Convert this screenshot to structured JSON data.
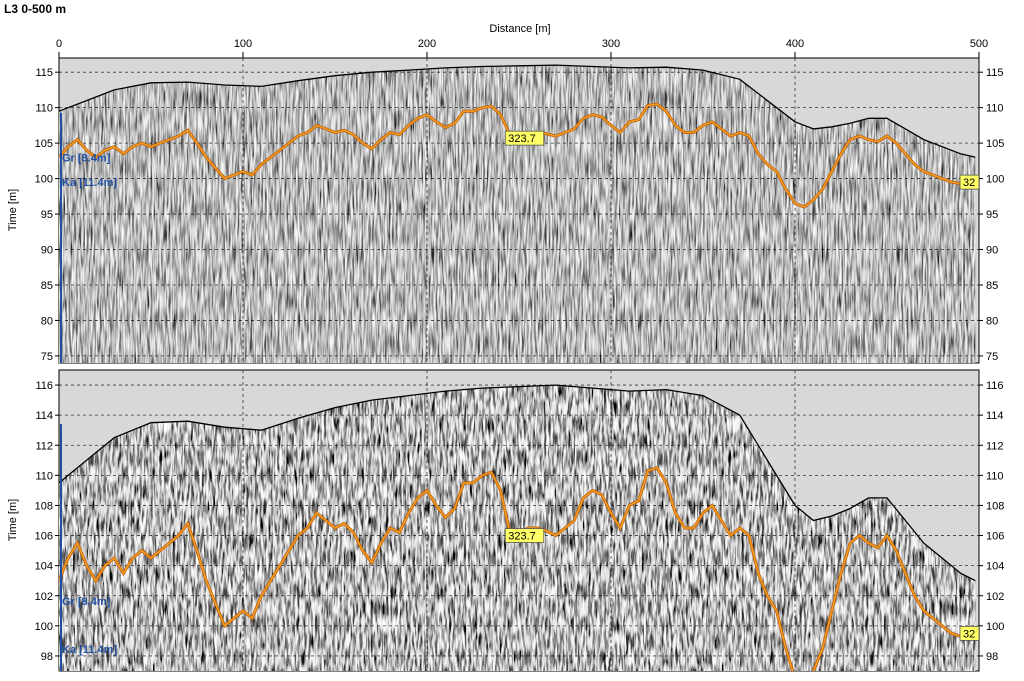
{
  "page_title": "L3 0-500 m",
  "chart_data": [
    {
      "type": "line",
      "panel": "top",
      "title": "L3 0-500 m",
      "xlabel": "Distance [m]",
      "ylabel": "Time [m]",
      "xlim": [
        0,
        500
      ],
      "ylim": [
        74,
        117
      ],
      "x_ticks": [
        0,
        100,
        200,
        300,
        400,
        500
      ],
      "x_tick_labels": [
        "0",
        "100",
        "200",
        "300",
        "400",
        "500"
      ],
      "y_ticks": [
        75,
        80,
        85,
        90,
        95,
        100,
        105,
        110,
        115
      ],
      "y_tick_labels": [
        "75",
        "80",
        "85",
        "90",
        "95",
        "100",
        "105",
        "110",
        "115"
      ],
      "grid": true,
      "series": [
        {
          "role": "surface",
          "color": "#000000",
          "x": [
            0,
            15,
            30,
            50,
            70,
            90,
            110,
            130,
            150,
            170,
            190,
            210,
            230,
            250,
            270,
            290,
            310,
            330,
            350,
            370,
            380,
            390,
            400,
            410,
            420,
            430,
            440,
            450,
            460,
            470,
            480,
            490,
            498
          ],
          "y": [
            109.5,
            111,
            112.5,
            113.5,
            113.6,
            113.2,
            113,
            113.8,
            114.5,
            115,
            115.3,
            115.6,
            115.8,
            115.9,
            116,
            115.8,
            115.6,
            115.7,
            115.3,
            114,
            112,
            110,
            108,
            107,
            107.3,
            107.8,
            108.5,
            108.5,
            107,
            105.5,
            104.5,
            103.5,
            103
          ]
        },
        {
          "role": "picked-horizon",
          "color": "#f59a23",
          "x": [
            0,
            5,
            10,
            15,
            20,
            25,
            30,
            35,
            40,
            45,
            50,
            55,
            60,
            65,
            70,
            75,
            80,
            85,
            90,
            95,
            100,
            105,
            110,
            115,
            120,
            125,
            130,
            135,
            140,
            145,
            150,
            155,
            160,
            165,
            170,
            175,
            180,
            185,
            190,
            195,
            200,
            205,
            210,
            215,
            220,
            225,
            230,
            235,
            240,
            245,
            250,
            255,
            260,
            265,
            270,
            275,
            280,
            285,
            290,
            295,
            300,
            305,
            310,
            315,
            320,
            325,
            330,
            335,
            340,
            345,
            350,
            355,
            360,
            365,
            370,
            375,
            380,
            385,
            390,
            395,
            400,
            405,
            410,
            415,
            420,
            425,
            430,
            435,
            440,
            445,
            450,
            455,
            460,
            465,
            470,
            475,
            480,
            485,
            490,
            495,
            498
          ],
          "y": [
            103,
            104.5,
            105.5,
            104,
            103,
            104,
            104.5,
            103.5,
            104.5,
            105,
            104.5,
            105,
            105.5,
            106,
            106.8,
            105,
            103,
            101.5,
            100,
            100.5,
            101,
            100.5,
            102,
            103,
            104,
            105,
            106,
            106.5,
            107.5,
            107,
            106.5,
            106.8,
            106.2,
            105,
            104.2,
            105.5,
            106.5,
            106.2,
            107.5,
            108.5,
            109,
            108,
            107.2,
            107.8,
            109.5,
            109.5,
            110,
            110.2,
            109,
            106.2,
            106.2,
            106.5,
            106.5,
            106.3,
            106,
            106.5,
            107,
            108.5,
            109,
            108.7,
            107.5,
            106.5,
            108,
            108.3,
            110.3,
            110.5,
            109.5,
            107.5,
            106.5,
            106.5,
            107.5,
            108,
            107,
            106,
            106.5,
            106,
            103.5,
            102,
            101,
            98.5,
            96.5,
            96,
            97,
            98.5,
            101,
            103.5,
            105.5,
            106,
            105.5,
            105.2,
            106,
            105,
            103.5,
            102,
            101,
            100.5,
            100,
            99.5,
            99.3,
            99.5,
            99.5
          ]
        }
      ],
      "labels": [
        {
          "text": "323.7",
          "x": 253,
          "y": 105.7
        },
        {
          "text": "32",
          "x": 498,
          "y": 99.5
        }
      ],
      "side_labels": [
        "Gr [8.4m]",
        "Ka [11.4m]"
      ]
    },
    {
      "type": "line",
      "panel": "bottom",
      "xlabel": "",
      "ylabel": "Time [m]",
      "xlim": [
        0,
        500
      ],
      "ylim": [
        97,
        117
      ],
      "y_ticks": [
        98,
        100,
        102,
        104,
        106,
        108,
        110,
        112,
        114,
        116
      ],
      "y_tick_labels": [
        "98",
        "100",
        "102",
        "104",
        "106",
        "108",
        "110",
        "112",
        "114",
        "116"
      ],
      "grid": true,
      "series": [
        {
          "role": "surface",
          "color": "#000000",
          "x": [
            0,
            15,
            30,
            50,
            70,
            90,
            110,
            130,
            150,
            170,
            190,
            210,
            230,
            250,
            270,
            290,
            310,
            330,
            350,
            370,
            380,
            390,
            400,
            410,
            420,
            430,
            440,
            450,
            460,
            470,
            480,
            490,
            498
          ],
          "y": [
            109.5,
            111,
            112.5,
            113.5,
            113.6,
            113.2,
            113,
            113.8,
            114.5,
            115,
            115.3,
            115.6,
            115.8,
            115.9,
            116,
            115.8,
            115.6,
            115.7,
            115.3,
            114,
            112,
            110,
            108,
            107,
            107.3,
            107.8,
            108.5,
            108.5,
            107,
            105.5,
            104.5,
            103.5,
            103
          ]
        },
        {
          "role": "picked-horizon",
          "color": "#f59a23",
          "x": [
            0,
            5,
            10,
            15,
            20,
            25,
            30,
            35,
            40,
            45,
            50,
            55,
            60,
            65,
            70,
            75,
            80,
            85,
            90,
            95,
            100,
            105,
            110,
            115,
            120,
            125,
            130,
            135,
            140,
            145,
            150,
            155,
            160,
            165,
            170,
            175,
            180,
            185,
            190,
            195,
            200,
            205,
            210,
            215,
            220,
            225,
            230,
            235,
            240,
            245,
            250,
            255,
            260,
            265,
            270,
            275,
            280,
            285,
            290,
            295,
            300,
            305,
            310,
            315,
            320,
            325,
            330,
            335,
            340,
            345,
            350,
            355,
            360,
            365,
            370,
            375,
            380,
            385,
            390,
            395,
            400,
            405,
            410,
            415,
            420,
            425,
            430,
            435,
            440,
            445,
            450,
            455,
            460,
            465,
            470,
            475,
            480,
            485,
            490,
            495,
            498
          ],
          "y": [
            103,
            104.5,
            105.5,
            104,
            103,
            104,
            104.5,
            103.5,
            104.5,
            105,
            104.5,
            105,
            105.5,
            106,
            106.8,
            105,
            103,
            101.5,
            100,
            100.5,
            101,
            100.5,
            102,
            103,
            104,
            105,
            106,
            106.5,
            107.5,
            107,
            106.5,
            106.8,
            106.2,
            105,
            104.2,
            105.5,
            106.5,
            106.2,
            107.5,
            108.5,
            109,
            108,
            107.2,
            107.8,
            109.5,
            109.5,
            110,
            110.2,
            109,
            106.2,
            106.2,
            106.5,
            106.5,
            106.3,
            106,
            106.5,
            107,
            108.5,
            109,
            108.7,
            107.5,
            106.5,
            108,
            108.3,
            110.3,
            110.5,
            109.5,
            107.5,
            106.5,
            106.5,
            107.5,
            108,
            107,
            106,
            106.5,
            106,
            103.5,
            102,
            101,
            98.5,
            96.5,
            96,
            97,
            98.5,
            101,
            103.5,
            105.5,
            106,
            105.5,
            105.2,
            106,
            105,
            103.5,
            102,
            101,
            100.5,
            100,
            99.5,
            99.3,
            99.5,
            99.5
          ]
        }
      ],
      "labels": [
        {
          "text": "323.7",
          "x": 253,
          "y": 106
        },
        {
          "text": "32",
          "x": 498,
          "y": 99.5
        }
      ],
      "side_labels": [
        "Gr [8.4m]",
        "Ka [11.4m]"
      ]
    }
  ],
  "colors": {
    "background": "#d8d8d8",
    "radargram_light": "#c8c8c8",
    "radargram_dark": "#303030",
    "horizon": "#f59a23",
    "label_fill": "#ffff66",
    "side_label": "#1f4fa0",
    "grid": "#000000"
  }
}
